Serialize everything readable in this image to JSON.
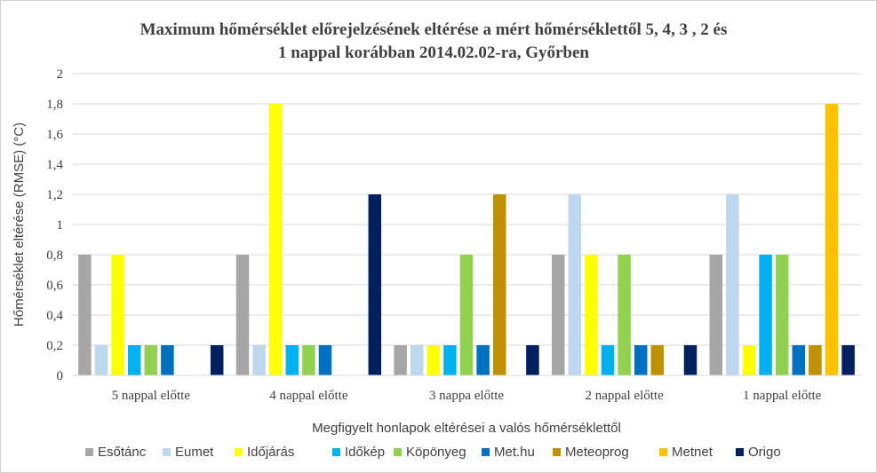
{
  "chart_data": {
    "type": "bar",
    "title_lines": [
      "Maximum hőmérséklet előrejelzésének eltérése a mért hőmérséklettől  5, 4, 3 , 2 és",
      "1 nappal korábban  2014.02.02-ra, Győrben"
    ],
    "xlabel": "Megfigyelt  honlapok eltérései a valós hőmérséklettől",
    "ylabel": "Hőmérséklet eltérése (RMSE) (°C)",
    "ylim": [
      0,
      2
    ],
    "ytick_labels": [
      "0",
      "0,2",
      "0,4",
      "0,6",
      "0,8",
      "1",
      "1,2",
      "1,4",
      "1,6",
      "1,8",
      "2"
    ],
    "categories": [
      "5 nappal előtte",
      "4 nappal előtte",
      "3 nappa előtte",
      "2 nappal előtte",
      "1 nappal előtte"
    ],
    "grid": true,
    "legend_position": "bottom",
    "series": [
      {
        "name": "Esőtánc",
        "color": "#A6A6A6",
        "values": [
          0.8,
          0.8,
          0.2,
          0.8,
          0.8
        ]
      },
      {
        "name": "Eumet",
        "color": "#BDD7EE",
        "values": [
          0.2,
          0.2,
          0.2,
          1.2,
          1.2
        ]
      },
      {
        "name": "Időjárás",
        "color": "#FFFF00",
        "values": [
          0.8,
          1.8,
          0.2,
          0.8,
          0.2
        ]
      },
      {
        "name": "Időkép",
        "color": "#00B0F0",
        "values": [
          0.2,
          0.2,
          0.2,
          0.2,
          0.8
        ]
      },
      {
        "name": "Köpönyeg",
        "color": "#92D050",
        "values": [
          0.2,
          0.2,
          0.8,
          0.8,
          0.8
        ]
      },
      {
        "name": "Met.hu",
        "color": "#0070C0",
        "values": [
          0.2,
          0.2,
          0.2,
          0.2,
          0.2
        ]
      },
      {
        "name": "Meteoprog",
        "color": "#BF9000",
        "values": [
          0,
          0,
          1.2,
          0.2,
          0.2
        ]
      },
      {
        "name": "Metnet",
        "color": "#FFC000",
        "values": [
          0,
          0,
          0,
          0,
          1.8
        ]
      },
      {
        "name": "Origo",
        "color": "#002060",
        "values": [
          0.2,
          1.2,
          0.2,
          0.2,
          0.2
        ]
      }
    ]
  }
}
